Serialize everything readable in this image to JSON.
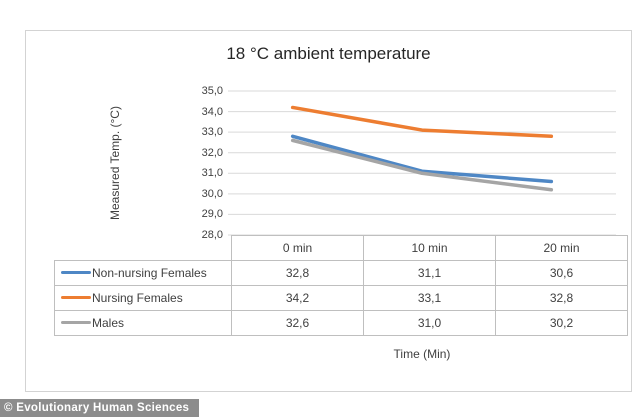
{
  "chart_data": {
    "type": "line",
    "title": "18 °C ambient temperature",
    "ylabel": "Measured Temp. (°C)",
    "xlabel": "Time (Min)",
    "categories": [
      "0 min",
      "10 min",
      "20 min"
    ],
    "series": [
      {
        "name": "Non-nursing Females",
        "values": [
          32.8,
          31.1,
          30.6
        ],
        "display": [
          "32,8",
          "31,1",
          "30,6"
        ],
        "color": "#4E87C5"
      },
      {
        "name": "Nursing Females",
        "values": [
          34.2,
          33.1,
          32.8
        ],
        "display": [
          "34,2",
          "33,1",
          "32,8"
        ],
        "color": "#ED7D31"
      },
      {
        "name": "Males",
        "values": [
          32.6,
          31.0,
          30.2
        ],
        "display": [
          "32,6",
          "31,0",
          "30,2"
        ],
        "color": "#A5A5A5"
      }
    ],
    "ylim": [
      28,
      35
    ],
    "yticks": [
      "35,0",
      "34,0",
      "33,0",
      "32,0",
      "31,0",
      "30,0",
      "29,0",
      "28,0"
    ],
    "grid": true,
    "gridline_color": "#D9D9D9",
    "legend_position": "table-left"
  },
  "watermark": {
    "text": "© Evolutionary Human Sciences",
    "bg": "#8C8C8C",
    "fg": "#FFFFFF"
  }
}
